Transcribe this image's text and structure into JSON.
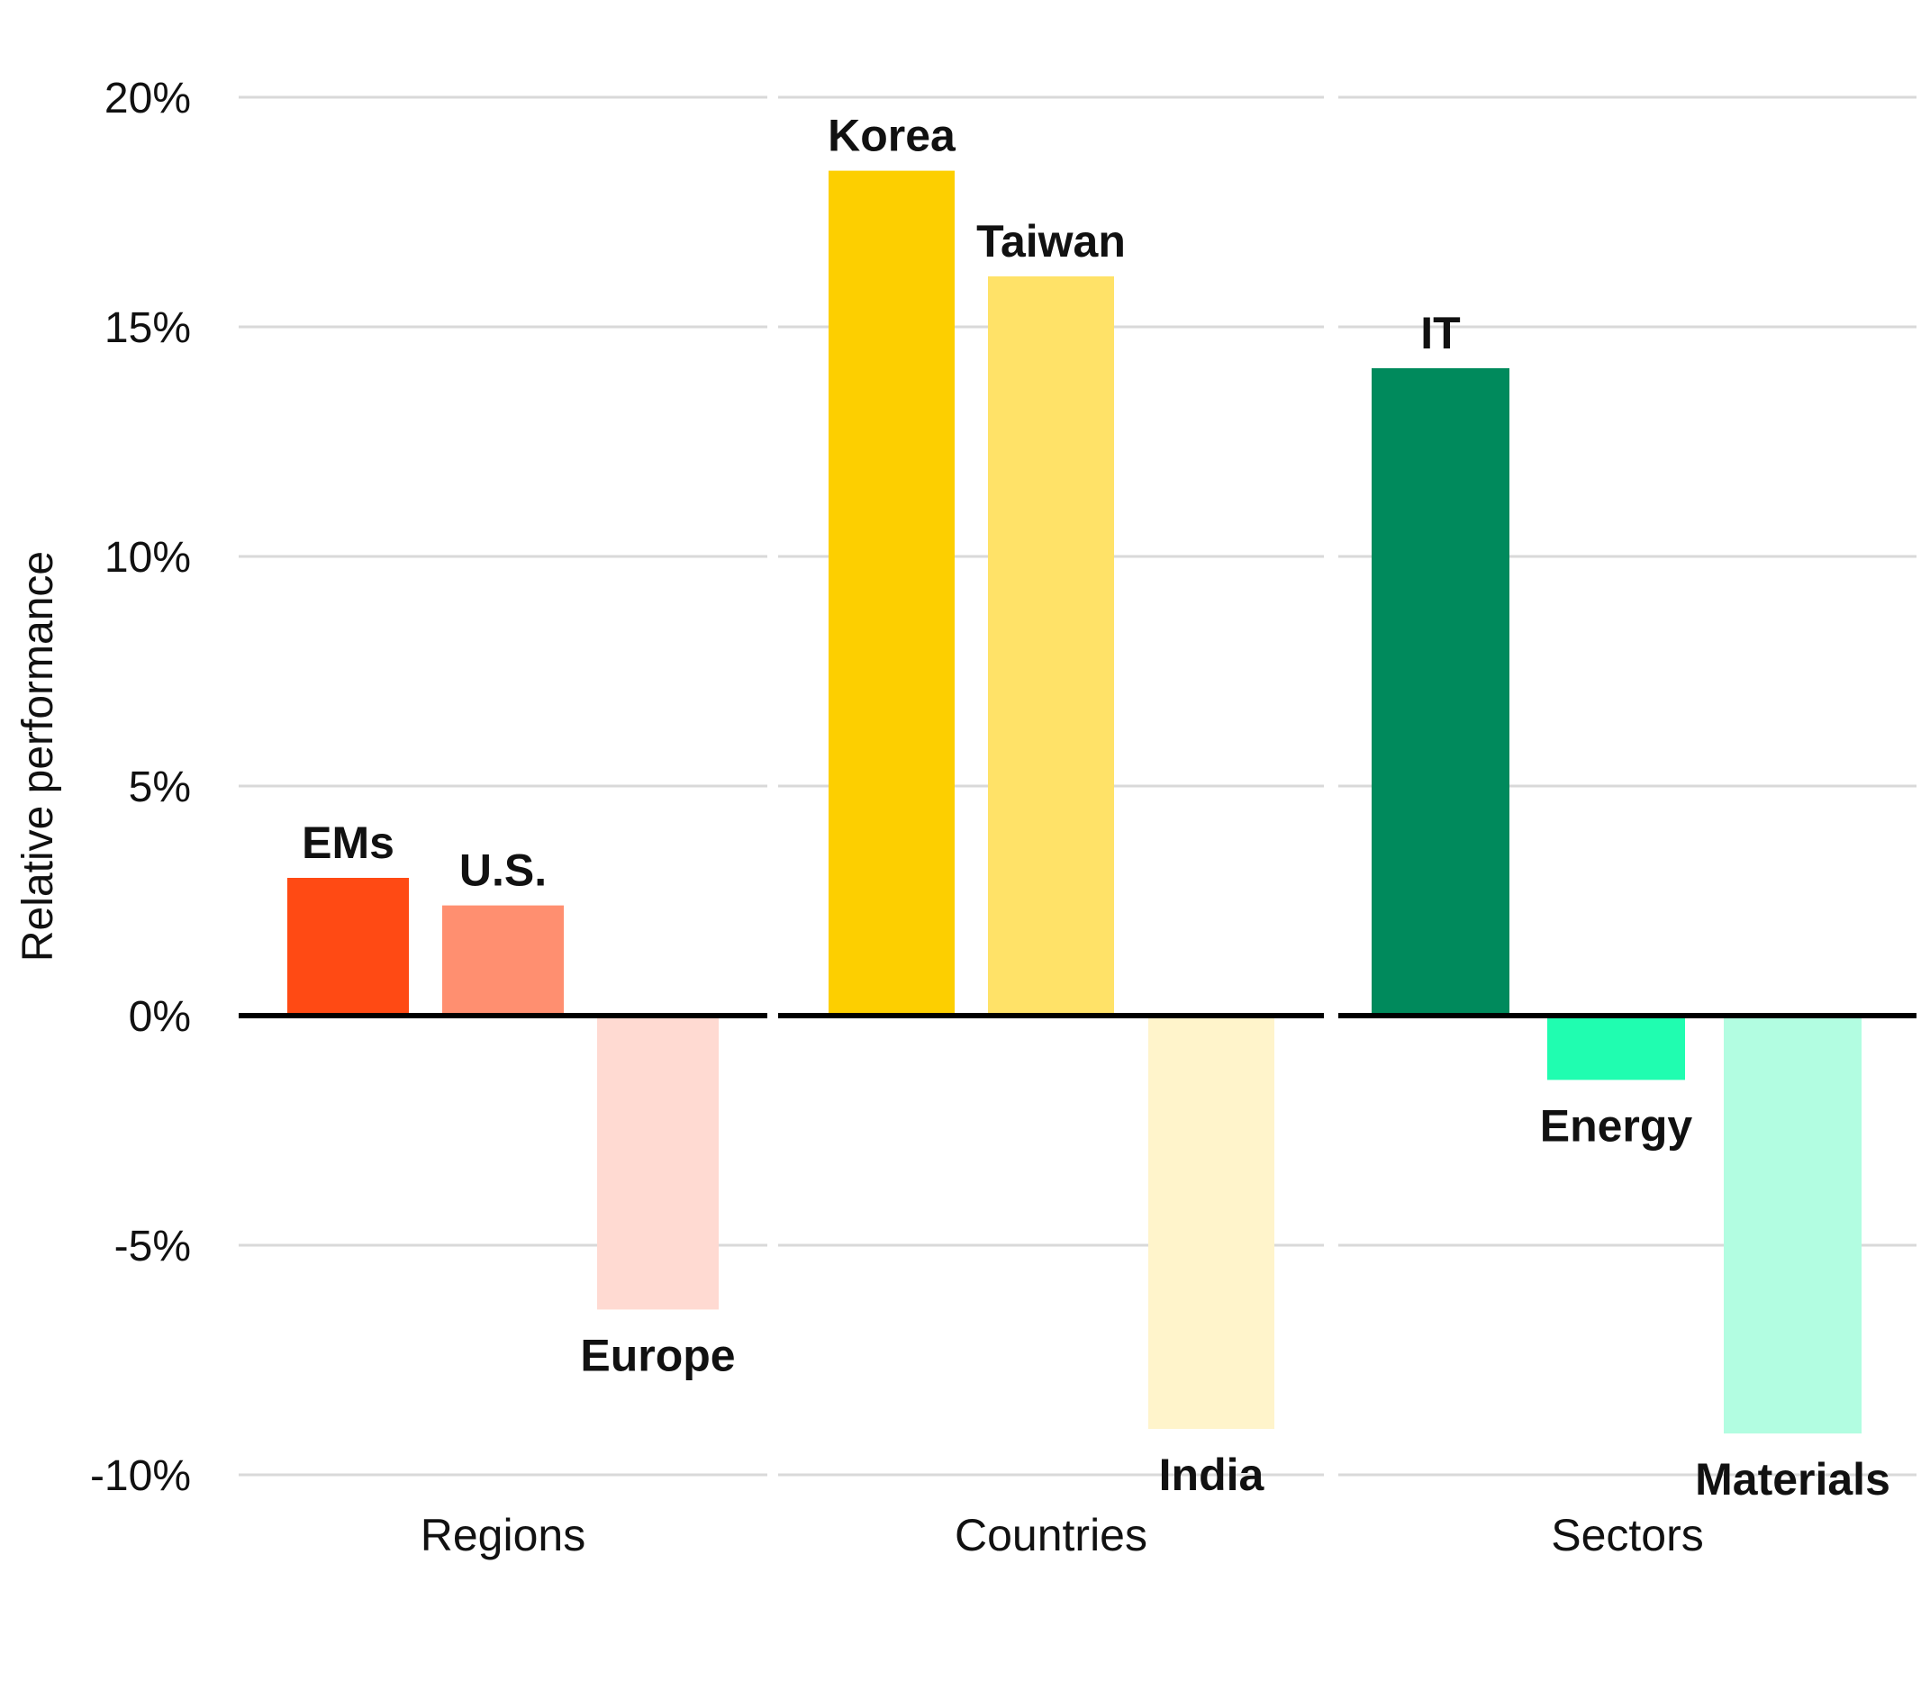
{
  "chart_data": {
    "type": "bar",
    "ylabel": "Relative performance",
    "ylim": [
      -10,
      20
    ],
    "yticks": [
      20,
      15,
      10,
      5,
      0,
      -5,
      -10
    ],
    "ytick_labels": [
      "20%",
      "15%",
      "10%",
      "5%",
      "0%",
      "-5%",
      "-10%"
    ],
    "grid": true,
    "panels": [
      {
        "label": "Regions",
        "bars": [
          {
            "name": "EMs",
            "value": 3.0,
            "color": "#FF4A14"
          },
          {
            "name": "U.S.",
            "value": 2.4,
            "color": "#FF8F70"
          },
          {
            "name": "Europe",
            "value": -6.4,
            "color": "#FFDAD2"
          }
        ]
      },
      {
        "label": "Countries",
        "bars": [
          {
            "name": "Korea",
            "value": 18.4,
            "color": "#FDCF00"
          },
          {
            "name": "Taiwan",
            "value": 16.1,
            "color": "#FFE268"
          },
          {
            "name": "India",
            "value": -9.0,
            "color": "#FFF4CB"
          }
        ]
      },
      {
        "label": "Sectors",
        "bars": [
          {
            "name": "IT",
            "value": 14.1,
            "color": "#008A5C"
          },
          {
            "name": "Energy",
            "value": -1.4,
            "color": "#20FDB0"
          },
          {
            "name": "Materials",
            "value": -9.1,
            "color": "#B2FDE1"
          }
        ]
      }
    ]
  }
}
